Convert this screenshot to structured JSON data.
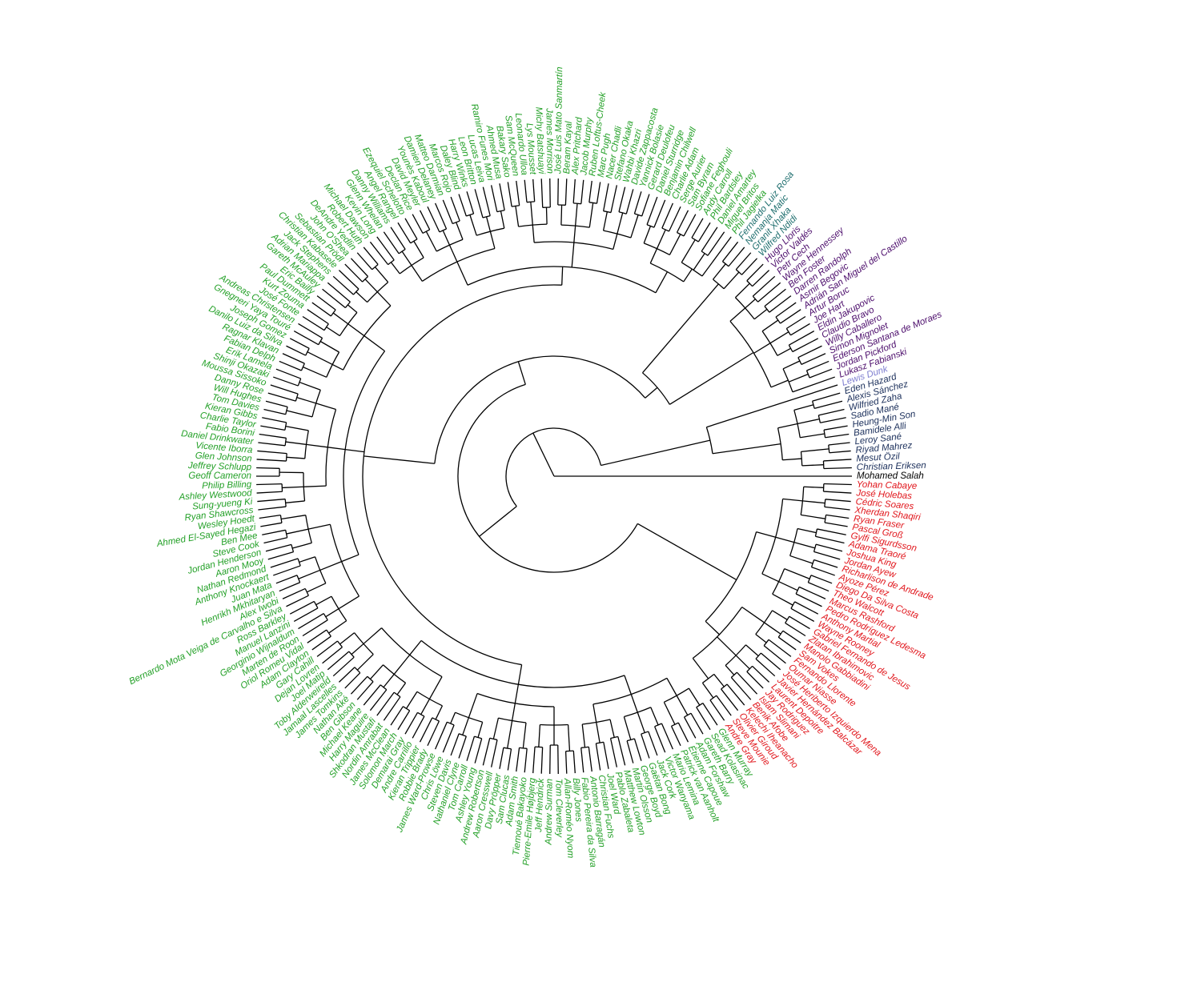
{
  "diagram": {
    "type": "circular-dendrogram",
    "cluster_colors": {
      "green": "#23A027",
      "teal": "#1E6E6E",
      "purple": "#4B0C6B",
      "lavender": "#7F7FD0",
      "navy": "#1A2E5A",
      "black": "#000000",
      "red": "#E1161C"
    },
    "leaf_groups": [
      {
        "color": "black",
        "names": [
          "Mohamed Salah"
        ]
      },
      {
        "color": "red",
        "names": [
          "Yohan Cabaye",
          "José Holebas",
          "Cédric Soares",
          "Xherdan Shaqiri",
          "Ryan Fraser",
          "Pascal Groß",
          "Gylfi Sigurdsson",
          "Adama Traoré",
          "Joshua King",
          "Jordan Ayew",
          "Richarlison de Andrade",
          "Ayoze Pérez",
          "Diego Da Silva Costa",
          "Theo Walcott",
          "Marcus Rashford",
          "Pedro Rodríguez Ledesma",
          "Anthony Martial",
          "Wayne Rooney",
          "Gabriel Fernando de Jesus",
          "Zlatan Ibrahimovic",
          "Manolo Gabbiadini",
          "Sam Vokes",
          "Fernando Llorente",
          "Oumar Niasse",
          "José Heriberto Izquierdo Mena",
          "Javier Hernández Balcázar",
          "Laurent Depoitre",
          "Jay Rodriguez",
          "Islam Slimani",
          "Benik Afobe",
          "Kelechi Iheanacho",
          "Olivier Giroud",
          "Steve Mounie",
          "Andre Gray"
        ]
      },
      {
        "color": "green",
        "names": [
          "Glenn Murray",
          "Sead Kolasinac",
          "Gareth Barry",
          "Adam Forshaw",
          "Étienne Capoue",
          "Patrick van Aanholt",
          "Mario Lemina",
          "Victor Wanyama",
          "Jack Cork",
          "Gaëtan Bong",
          "George Boyd",
          "Martin Olsson",
          "Matthew Lowton",
          "Pablo Zabaleta",
          "Joel Ward",
          "Christian Fuchs",
          "Antonio Barragán",
          "Fabio Pereira da Silva",
          "Billy Jones",
          "Allan-Roméo Nyom",
          "Tom Cleverley",
          "Andrew Surman",
          "Jeff Hendrick",
          "Pierre-Emile Højbjerg",
          "Tiemoué Bakayoko",
          "Adam Smith",
          "Sam Clucas",
          "Davy Pröpper",
          "Aaron Cresswell",
          "Andrew Robertson",
          "Ashley Young",
          "Tom Carroll",
          "Nathaniel Clyne",
          "Steven Davis",
          "Chris Löwe",
          "James Ward-Prowse",
          "Robbie Brady",
          "Kieran Trippier",
          "Andre Carrillo",
          "Demarai Gray",
          "Solomon March",
          "James McClean",
          "Nordin Amrabat",
          "Shkodran Mustafi",
          "Harry Maguire",
          "Michael Keane",
          "Ben Gibson",
          "Nathan Aké",
          "James Tomkins",
          "Jamaal Lascelles",
          "Toby Alderweireld",
          "Joel Matip",
          "Dejan Lovren",
          "Gary Cahill",
          "Adam Clayton",
          "Oriol Romeu Vidal",
          "Marten de Roon",
          "Georginio Wijnaldum",
          "Manuel Lanzini",
          "Ross Barkley",
          "Bernardo Mota Veiga de Carvalho e Silva",
          "Alex Iwobi",
          "Henrikh Mkhitaryan",
          "Juan Mata",
          "Anthony Knockaert",
          "Nathan Redmond",
          "Aaron Mooy",
          "Jordan Henderson",
          "Steve Cook",
          "Ben Mee",
          "Ahmed El-Sayed Hegazi",
          "Wesley Hoedt",
          "Ryan Shawcross",
          "Sung-yueng Ki",
          "Ashley Westwood",
          "Philip Billing",
          "Geoff Cameron",
          "Jeffrey Schlupp",
          "Glen Johnson",
          "Vicente Iborra",
          "Daniel Drinkwater",
          "Fabio Borini",
          "Charlie Taylor",
          "Kieran Gibbs",
          "Tom Davies",
          "Will Hughes",
          "Danny Rose",
          "Moussa Sissoko",
          "Shinji Okazaki",
          "Erik Lamela",
          "Fabian Delph",
          "Ragnar Klavan",
          "Danilo Luiz da Silva",
          "Joseph Gomez",
          "Gnegneri Yaya Touré",
          "Andreas Christensen",
          "José Fonte",
          "Kurt Zouma",
          "Paul Dummett",
          "Eric Bailly",
          "Gareth McAuley",
          "Adrian Mariappa",
          "Jack Stephens",
          "Christian Kabasele",
          "Sebastian Prödl",
          "John O'Shea",
          "DeAndre Yedlin",
          "Robert Huth",
          "Michael Dawson",
          "Kevin Long",
          "Glenn Whelan",
          "Danny Williams",
          "Angel Rangel",
          "Ezequiel Schelotto",
          "Declan Rice",
          "David Meyler",
          "Younès Kaboul",
          "Damien Delaney",
          "Matteo Darmian",
          "Marcos Rojo",
          "Daley Blind",
          "Harry Winks",
          "Leon Britton",
          "Lucas Leiva",
          "Ramiro Funes Mori",
          "Ahmed Musa",
          "Bakary Sako",
          "Sam McQueen",
          "Leonardo Ulloa",
          "Lys Mousset",
          "Michy Batshuayi",
          "James Morrison",
          "José Luis Mato Sanmartín",
          "Beram Kayal",
          "Alex Pritchard",
          "Jacob Murphy",
          "Ruben Loftus-Cheek",
          "Marc Pugh",
          "Nacer Chadli",
          "Stefano Okaka",
          "Wahbi Khazri",
          "Davide Zappacosta",
          "Yannick Bolasie",
          "Gerard Deulofeu",
          "Daniel Sturridge",
          "Benjamin Chilwell",
          "Charlie Adam",
          "Serge Aurier",
          "Sam Byram",
          "Sofiane Feghouli",
          "Andy Carroll",
          "Phil Bardsley",
          "Daniel Amartey",
          "Miguel Britos",
          "Phil Jagielka"
        ]
      },
      {
        "color": "teal",
        "names": [
          "Fernando Luiz Rosa",
          "Nemanja Matic",
          "Granit Xhaka",
          "Wilfred Ndidi"
        ]
      },
      {
        "color": "purple",
        "names": [
          "Hugo Lloris",
          "Victor Valdés",
          "Petr Cech",
          "Wayne Hennessey",
          "Ben Foster",
          "Darren Randolph",
          "Asmir Begovic",
          "Adrián San Miguel del Castillo",
          "Artur Boruc",
          "Joe Hart",
          "Eldin Jakupovic",
          "Claudio Bravo",
          "Willy Caballero",
          "Simon Mignolet",
          "Ederson Santana de Moraes",
          "Jordan Pickford",
          "Lukasz Fabianski"
        ]
      },
      {
        "color": "lavender",
        "names": [
          "Lewis Dunk"
        ]
      },
      {
        "color": "navy",
        "names": [
          "Eden Hazard",
          "Alexis Sánchez",
          "Wilfried Zaha",
          "Sadio Mané",
          "Heung-Min Son",
          "Bamidele Alli",
          "Leroy Sané",
          "Riyad Mahrez",
          "Mesut Özil",
          "Christian Eriksen"
        ]
      }
    ]
  }
}
